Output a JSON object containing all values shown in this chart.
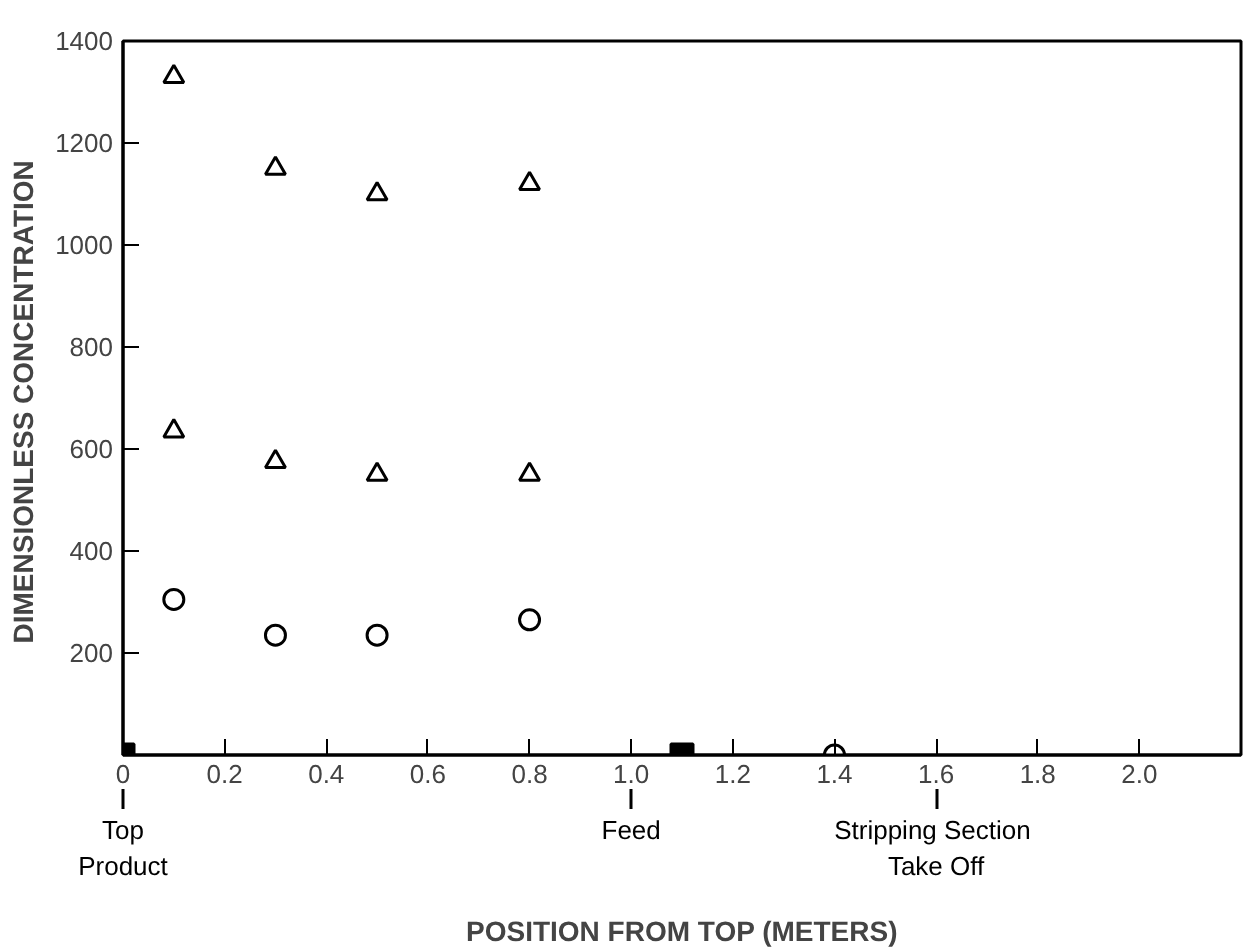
{
  "chart_data": {
    "type": "scatter",
    "xlabel": "POSITION FROM TOP (METERS)",
    "ylabel": "DIMENSIONLESS  CONCENTRATION",
    "xlim": [
      0,
      2.2
    ],
    "xticks": [
      0,
      0.2,
      0.4,
      0.6,
      0.8,
      {
        "value": 1.0,
        "label": "1.0"
      },
      1.2,
      1.4,
      1.6,
      1.8,
      {
        "value": 2.0,
        "label": "2.0"
      }
    ],
    "ylim": [
      0,
      1400
    ],
    "yticks": [
      {
        "value": 0,
        "label": null
      },
      200,
      400,
      600,
      800,
      1000,
      1200,
      1400
    ],
    "grid": false,
    "series": [
      {
        "color": "#000000",
        "marker": "triangle",
        "x": [
          0.1,
          0.3,
          0.5,
          0.8
        ],
        "values": [
          1330,
          1150,
          1100,
          1120
        ]
      },
      {
        "color": "#000000",
        "marker": "triangle",
        "x": [
          0.1,
          0.3,
          0.5,
          0.8
        ],
        "values": [
          635,
          575,
          550,
          550
        ]
      },
      {
        "color": "#000000",
        "marker": "circle",
        "x": [
          0.1,
          0.3,
          0.5,
          0.8
        ],
        "values": [
          305,
          235,
          235,
          265
        ]
      },
      {
        "color": "#000000",
        "marker": "square",
        "x": [
          0,
          1.1
        ],
        "values": [
          0,
          0
        ]
      },
      {
        "color": "#000000",
        "marker": "circle",
        "x": [
          1.4
        ],
        "values": [
          0
        ]
      }
    ],
    "ref_lines": [
      {
        "axis": "x",
        "value": 0,
        "label": "Top\nProduct"
      },
      {
        "axis": "x",
        "value": 1.0,
        "label": "Feed"
      },
      {
        "axis": "x",
        "value": 1.6,
        "label": "Stripping  Section\nTake Off"
      }
    ]
  }
}
